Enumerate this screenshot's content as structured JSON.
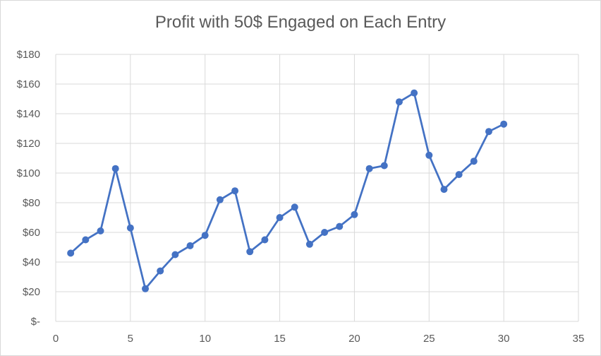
{
  "chart_data": {
    "type": "scatter",
    "title": "Profit with 50$ Engaged on Each Entry",
    "xlabel": "",
    "ylabel": "",
    "xlim": [
      0,
      35
    ],
    "ylim": [
      0,
      180
    ],
    "x_ticks": [
      0,
      5,
      10,
      15,
      20,
      25,
      30,
      35
    ],
    "y_tick_values": [
      0,
      20,
      40,
      60,
      80,
      100,
      120,
      140,
      160,
      180
    ],
    "y_tick_labels": [
      "$-",
      "$20",
      "$40",
      "$60",
      "$80",
      "$100",
      "$120",
      "$140",
      "$160",
      "$180"
    ],
    "grid": true,
    "legend": "none",
    "series": [
      {
        "color": "#4472c4",
        "x": [
          1,
          2,
          3,
          4,
          5,
          6,
          7,
          8,
          9,
          10,
          11,
          12,
          13,
          14,
          15,
          16,
          17,
          18,
          19,
          20,
          21,
          22,
          23,
          24,
          25,
          26,
          27,
          28,
          29,
          30
        ],
        "y": [
          46,
          55,
          61,
          103,
          63,
          22,
          34,
          45,
          51,
          58,
          82,
          88,
          47,
          55,
          70,
          77,
          52,
          60,
          64,
          72,
          103,
          105,
          148,
          154,
          112,
          89,
          99,
          108,
          128,
          133
        ]
      }
    ]
  }
}
